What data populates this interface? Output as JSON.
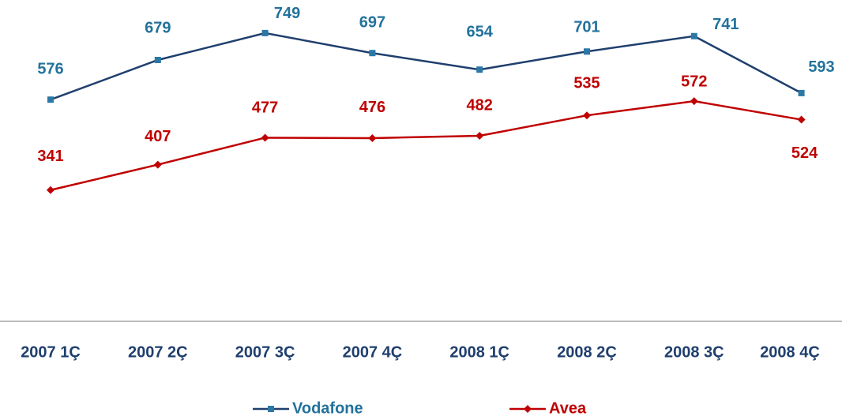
{
  "chart_data": {
    "type": "line",
    "categories": [
      "2007 1Ç",
      "2007 2Ç",
      "2007 3Ç",
      "2007 4Ç",
      "2008 1Ç",
      "2008 2Ç",
      "2008 3Ç",
      "2008 4Ç"
    ],
    "series": [
      {
        "name": "Vodafone",
        "color": "#1f3f6e",
        "marker_color": "#2b78a6",
        "label_color": "#23729c",
        "marker": "square",
        "values": [
          576,
          679,
          749,
          697,
          654,
          701,
          741,
          593
        ]
      },
      {
        "name": "Avea",
        "color": "#c00000",
        "marker_color": "#c00000",
        "label_color": "#c00000",
        "marker": "diamond",
        "values": [
          341,
          407,
          477,
          476,
          482,
          535,
          572,
          524
        ]
      }
    ],
    "ylim": [
      0,
      800
    ],
    "grid": false,
    "legend": "bottom"
  }
}
